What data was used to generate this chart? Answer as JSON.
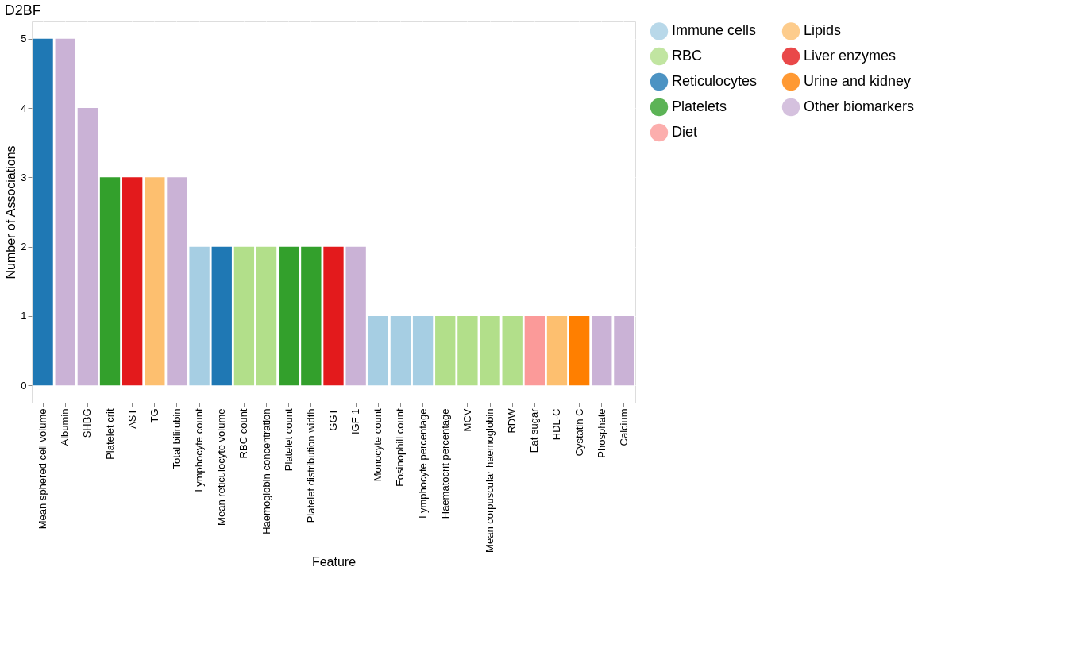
{
  "chart_data": {
    "type": "bar",
    "title": "D2BF",
    "xlabel": "Feature",
    "ylabel": "Number of Associations",
    "categories": [
      "Mean sphered cell volume",
      "Albumin",
      "SHBG",
      "Platelet crit",
      "AST",
      "TG",
      "Total bilirubin",
      "Lymphocyte count",
      "Mean reticulocyte volume",
      "RBC count",
      "Haemoglobin concentration",
      "Platelet count",
      "Platelet distribution width",
      "GGT",
      "IGF 1",
      "Monocyte count",
      "Eosinophill count",
      "Lymphocyte percentage",
      "Haematocrit percentage",
      "MCV",
      "Mean corpuscular haemoglobin",
      "RDW",
      "Eat sugar",
      "HDL-C",
      "Cystatin C",
      "Phosphate",
      "Calcium"
    ],
    "series": [
      {
        "name": "Immune cells",
        "color": "#a6cee3",
        "values": [
          null,
          null,
          null,
          null,
          null,
          null,
          null,
          2,
          null,
          null,
          null,
          null,
          null,
          null,
          null,
          1,
          1,
          1,
          null,
          null,
          null,
          null,
          null,
          null,
          null,
          null,
          null
        ]
      },
      {
        "name": "RBC",
        "color": "#b2df8a",
        "values": [
          null,
          null,
          null,
          null,
          null,
          null,
          null,
          null,
          null,
          2,
          2,
          null,
          null,
          null,
          null,
          null,
          null,
          null,
          1,
          1,
          1,
          1,
          null,
          null,
          null,
          null,
          null
        ]
      },
      {
        "name": "Reticulocytes",
        "color": "#1f78b4",
        "values": [
          5,
          null,
          null,
          null,
          null,
          null,
          null,
          null,
          2,
          null,
          null,
          null,
          null,
          null,
          null,
          null,
          null,
          null,
          null,
          null,
          null,
          null,
          null,
          null,
          null,
          null,
          null
        ]
      },
      {
        "name": "Platelets",
        "color": "#33a02c",
        "values": [
          null,
          null,
          null,
          3,
          null,
          null,
          null,
          null,
          null,
          null,
          null,
          2,
          2,
          null,
          null,
          null,
          null,
          null,
          null,
          null,
          null,
          null,
          null,
          null,
          null,
          null,
          null
        ]
      },
      {
        "name": "Diet",
        "color": "#fb9a99",
        "values": [
          null,
          null,
          null,
          null,
          null,
          null,
          null,
          null,
          null,
          null,
          null,
          null,
          null,
          null,
          null,
          null,
          null,
          null,
          null,
          null,
          null,
          null,
          1,
          null,
          null,
          null,
          null
        ]
      },
      {
        "name": "Lipids",
        "color": "#fdbf6f",
        "values": [
          null,
          null,
          null,
          null,
          null,
          3,
          null,
          null,
          null,
          null,
          null,
          null,
          null,
          null,
          null,
          null,
          null,
          null,
          null,
          null,
          null,
          null,
          null,
          1,
          null,
          null,
          null
        ]
      },
      {
        "name": "Liver enzymes",
        "color": "#e31a1c",
        "values": [
          null,
          null,
          null,
          null,
          3,
          null,
          null,
          null,
          null,
          null,
          null,
          null,
          null,
          2,
          null,
          null,
          null,
          null,
          null,
          null,
          null,
          null,
          null,
          null,
          null,
          null,
          null
        ]
      },
      {
        "name": "Urine and kidney",
        "color": "#ff7f00",
        "values": [
          null,
          null,
          null,
          null,
          null,
          null,
          null,
          null,
          null,
          null,
          null,
          null,
          null,
          null,
          null,
          null,
          null,
          null,
          null,
          null,
          null,
          null,
          null,
          null,
          1,
          null,
          null
        ]
      },
      {
        "name": "Other biomarkers",
        "color": "#cab2d6",
        "values": [
          null,
          5,
          4,
          null,
          null,
          null,
          3,
          null,
          null,
          null,
          null,
          null,
          null,
          null,
          2,
          null,
          null,
          null,
          null,
          null,
          null,
          null,
          null,
          null,
          null,
          1,
          1
        ]
      }
    ],
    "ylim": [
      -0.25,
      5.25
    ],
    "yticks": [
      0,
      1,
      2,
      3,
      4,
      5
    ],
    "grid": true,
    "legend": "right"
  }
}
